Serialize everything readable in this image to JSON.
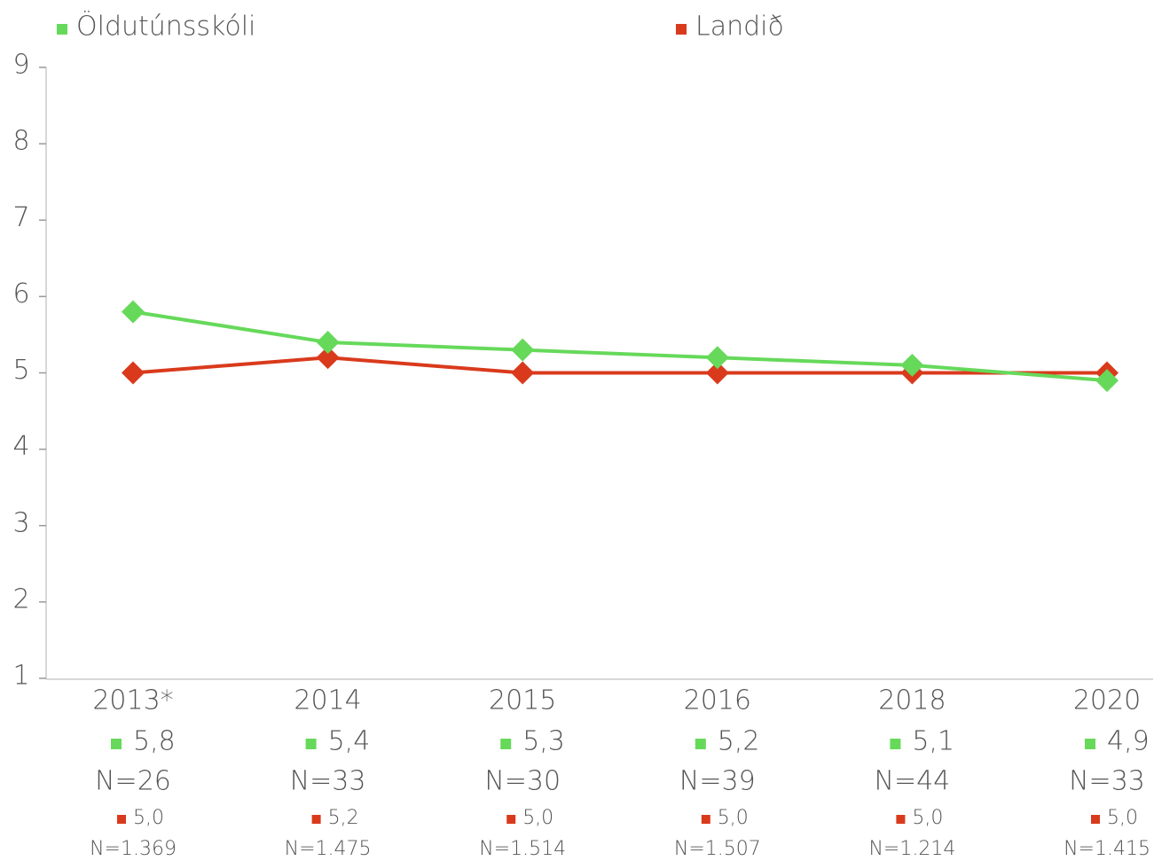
{
  "chart_data": {
    "type": "line",
    "categories": [
      "2013*",
      "2014",
      "2015",
      "2016",
      "2018",
      "2020"
    ],
    "series": [
      {
        "name": "Öldutúnsskóli",
        "color": "#66d95a",
        "values": [
          5.8,
          5.4,
          5.3,
          5.2,
          5.1,
          4.9
        ],
        "value_labels": [
          "5,8",
          "5,4",
          "5,3",
          "5,2",
          "5,1",
          "4,9"
        ],
        "n_labels": [
          "N=26",
          "N=33",
          "N=30",
          "N=39",
          "N=44",
          "N=33"
        ]
      },
      {
        "name": "Landið",
        "color": "#d93a1c",
        "values": [
          5.0,
          5.2,
          5.0,
          5.0,
          5.0,
          5.0
        ],
        "value_labels": [
          "5,0",
          "5,2",
          "5,0",
          "5,0",
          "5,0",
          "5,0"
        ],
        "n_labels": [
          "N=1.369",
          "N=1.475",
          "N=1.514",
          "N=1.507",
          "N=1.214",
          "N=1.415"
        ]
      }
    ],
    "ylim": [
      1,
      9
    ],
    "yticks": [
      1,
      2,
      3,
      4,
      5,
      6,
      7,
      8,
      9
    ],
    "grid": false
  }
}
